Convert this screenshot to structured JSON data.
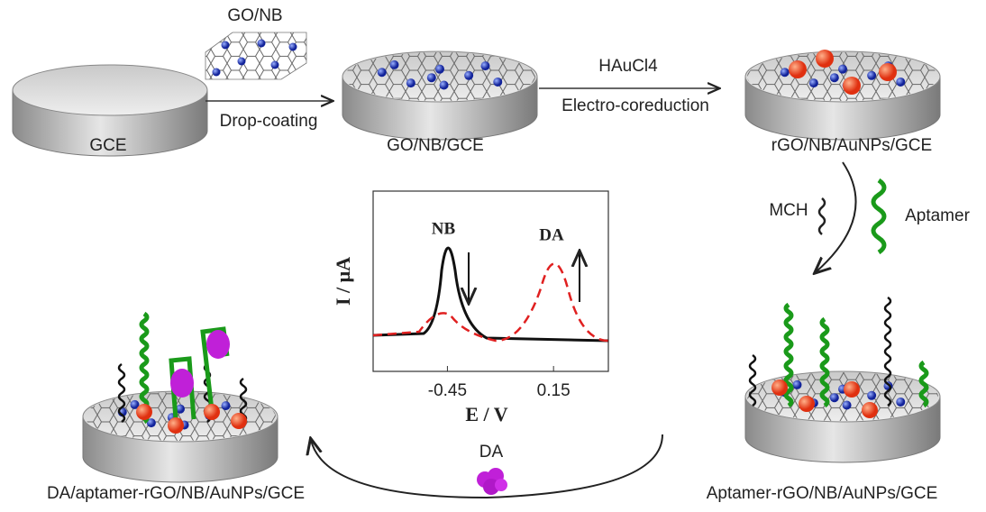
{
  "steps": {
    "go_nb": "GO/NB",
    "gce": "GCE",
    "drop_coating": "Drop-coating",
    "go_nb_gce": "GO/NB/GCE",
    "haucl4": "HAuCl4",
    "electro": "Electro-coreduction",
    "rgo": "rGO/NB/AuNPs/GCE",
    "mch": "MCH",
    "aptamer": "Aptamer",
    "aptamer_electrode": "Aptamer-rGO/NB/AuNPs/GCE",
    "da": "DA",
    "da_electrode": "DA/aptamer-rGO/NB/AuNPs/GCE"
  },
  "inset": {
    "nb_peak": "NB",
    "da_peak": "DA",
    "ylabel": "I / μA",
    "xlabel": "E / V",
    "xlim": [
      -0.87,
      0.46
    ],
    "xticks": [
      -0.45,
      0.15
    ]
  }
}
